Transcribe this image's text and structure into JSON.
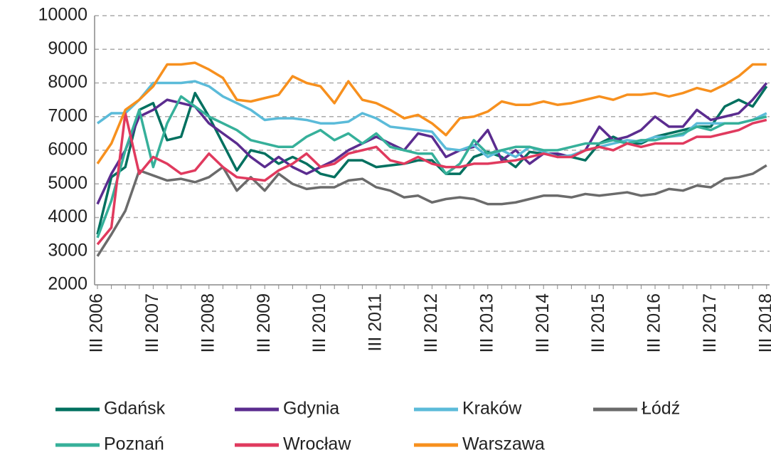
{
  "chart_data": {
    "type": "line",
    "categories": [
      "III 2006",
      null,
      null,
      null,
      "III 2007",
      null,
      null,
      null,
      "III 2008",
      null,
      null,
      null,
      "III 2009",
      null,
      null,
      null,
      "III 2010",
      null,
      null,
      null,
      "III 2011",
      null,
      null,
      null,
      "III 2012",
      null,
      null,
      null,
      "III 2013",
      null,
      null,
      null,
      "III 2014",
      null,
      null,
      null,
      "III 2015",
      null,
      null,
      null,
      "III 2016",
      null,
      null,
      null,
      "III 2017",
      null,
      null,
      null,
      "III 2018"
    ],
    "ylim": [
      2000,
      10000
    ],
    "yticks": [
      2000,
      3000,
      4000,
      5000,
      6000,
      7000,
      8000,
      9000,
      10000
    ],
    "grid": true,
    "series": [
      {
        "name": "Gdańsk",
        "color": "#00705f",
        "values": [
          3500,
          5200,
          5500,
          7200,
          7400,
          6300,
          6400,
          7700,
          7000,
          6200,
          5400,
          6000,
          5900,
          5600,
          5800,
          5600,
          5300,
          5200,
          5700,
          5700,
          5500,
          5550,
          5600,
          5700,
          5700,
          5300,
          5300,
          5800,
          5950,
          5800,
          5500,
          5950,
          5900,
          5850,
          5800,
          5700,
          6200,
          6400,
          6200,
          6200,
          6400,
          6500,
          6600,
          6700,
          6700,
          7300,
          7500,
          7300,
          7900
        ]
      },
      {
        "name": "Gdynia",
        "color": "#5b2c8f",
        "values": [
          4400,
          5300,
          6000,
          7000,
          7200,
          7500,
          7400,
          7300,
          6800,
          6500,
          6200,
          5800,
          5500,
          5800,
          5500,
          5300,
          5500,
          5700,
          6000,
          6200,
          6400,
          6200,
          6000,
          6500,
          6400,
          5800,
          6000,
          6100,
          6600,
          5700,
          6000,
          5600,
          5900,
          5900,
          5800,
          6000,
          6700,
          6300,
          6400,
          6600,
          7000,
          6700,
          6700,
          7200,
          6900,
          7000,
          7100,
          7500,
          8000
        ]
      },
      {
        "name": "Kraków",
        "color": "#5bbbd9",
        "values": [
          6800,
          7100,
          7100,
          7500,
          8000,
          8000,
          8000,
          8050,
          7900,
          7600,
          7400,
          7200,
          6900,
          6950,
          6950,
          6900,
          6800,
          6800,
          6850,
          7100,
          6950,
          6700,
          6650,
          6600,
          6550,
          6050,
          6000,
          6150,
          5800,
          6000,
          5800,
          6100,
          5950,
          5800,
          5850,
          6000,
          6100,
          6200,
          6300,
          6250,
          6400,
          6400,
          6450,
          6800,
          6800,
          6800,
          6800,
          6900,
          7100
        ]
      },
      {
        "name": "Łódź",
        "color": "#6b6b6b",
        "values": [
          2850,
          3500,
          4200,
          5400,
          5250,
          5100,
          5150,
          5050,
          5200,
          5500,
          4800,
          5200,
          4800,
          5300,
          5000,
          4850,
          4900,
          4900,
          5100,
          5150,
          4900,
          4800,
          4600,
          4650,
          4450,
          4550,
          4600,
          4550,
          4400,
          4400,
          4450,
          4550,
          4650,
          4650,
          4600,
          4700,
          4650,
          4700,
          4750,
          4650,
          4700,
          4850,
          4800,
          4950,
          4900,
          5150,
          5200,
          5300,
          5550
        ]
      },
      {
        "name": "Poznań",
        "color": "#36b09a",
        "values": [
          3400,
          4500,
          6000,
          7200,
          5500,
          6800,
          7600,
          7300,
          7000,
          6800,
          6600,
          6300,
          6200,
          6100,
          6100,
          6400,
          6600,
          6300,
          6500,
          6200,
          6500,
          6100,
          6000,
          5900,
          5900,
          5300,
          5600,
          6300,
          5900,
          6000,
          6100,
          6100,
          6000,
          6000,
          6100,
          6200,
          6200,
          6300,
          6200,
          6300,
          6300,
          6400,
          6500,
          6700,
          6600,
          6800,
          6800,
          6900,
          7000
        ]
      },
      {
        "name": "Wrocław",
        "color": "#e03a5e",
        "values": [
          3200,
          3700,
          7100,
          5300,
          5800,
          5600,
          5300,
          5400,
          5900,
          5500,
          5200,
          5150,
          5100,
          5400,
          5600,
          5900,
          5500,
          5600,
          5900,
          6000,
          6100,
          5700,
          5600,
          5800,
          5600,
          5500,
          5500,
          5600,
          5600,
          5650,
          5700,
          5800,
          5900,
          5800,
          5800,
          6000,
          6100,
          6000,
          6200,
          6100,
          6200,
          6200,
          6200,
          6400,
          6400,
          6500,
          6600,
          6800,
          6900
        ]
      },
      {
        "name": "Warszawa",
        "color": "#f7901e",
        "values": [
          5600,
          6200,
          7200,
          7500,
          7900,
          8550,
          8550,
          8600,
          8400,
          8150,
          7500,
          7450,
          7550,
          7650,
          8200,
          8000,
          7900,
          7400,
          8050,
          7500,
          7400,
          7200,
          6950,
          7050,
          6800,
          6450,
          6950,
          7000,
          7150,
          7450,
          7350,
          7350,
          7450,
          7350,
          7400,
          7500,
          7600,
          7500,
          7650,
          7650,
          7700,
          7600,
          7700,
          7850,
          7750,
          7950,
          8200,
          8550,
          8550
        ]
      }
    ]
  }
}
